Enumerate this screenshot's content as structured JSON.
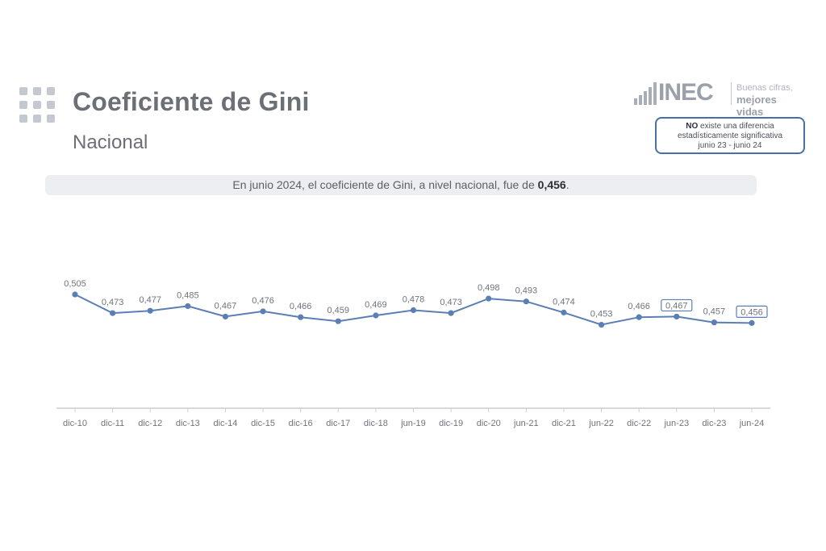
{
  "header": {
    "title": "Coeficiente de Gini",
    "subtitle": "Nacional"
  },
  "brand": {
    "wordmark": "INEC",
    "tagline_line1": "Buenas cifras,",
    "tagline_line2": "mejores vidas"
  },
  "note": {
    "bold": "NO",
    "line1_rest": " existe una diferencia",
    "line2": "estadísticamente significativa",
    "line3": "junio 23 - junio 24"
  },
  "banner": {
    "text_before": "En junio 2024, el coeficiente de Gini, a nivel nacional, fue de ",
    "text_bold": "0,456",
    "text_after": "."
  },
  "colors": {
    "line": "#5b7fb5",
    "highlight_border": "#5b7fb5",
    "axis": "#c9cdd3"
  },
  "chart_data": {
    "type": "line",
    "categories": [
      "dic-10",
      "dic-11",
      "dic-12",
      "dic-13",
      "dic-14",
      "dic-15",
      "dic-16",
      "dic-17",
      "dic-18",
      "jun-19",
      "dic-19",
      "dic-20",
      "jun-21",
      "dic-21",
      "jun-22",
      "dic-22",
      "jun-23",
      "dic-23",
      "jun-24"
    ],
    "values": [
      0.505,
      0.473,
      0.477,
      0.485,
      0.467,
      0.476,
      0.466,
      0.459,
      0.469,
      0.478,
      0.473,
      0.498,
      0.493,
      0.474,
      0.453,
      0.466,
      0.467,
      0.457,
      0.456
    ],
    "value_labels": [
      "0,505",
      "0,473",
      "0,477",
      "0,485",
      "0,467",
      "0,476",
      "0,466",
      "0,459",
      "0,469",
      "0,478",
      "0,473",
      "0,498",
      "0,493",
      "0,474",
      "0,453",
      "0,466",
      "0,467",
      "0,457",
      "0,456"
    ],
    "highlighted": [
      "jun-23",
      "jun-24"
    ],
    "grid": false,
    "legend": "none"
  }
}
